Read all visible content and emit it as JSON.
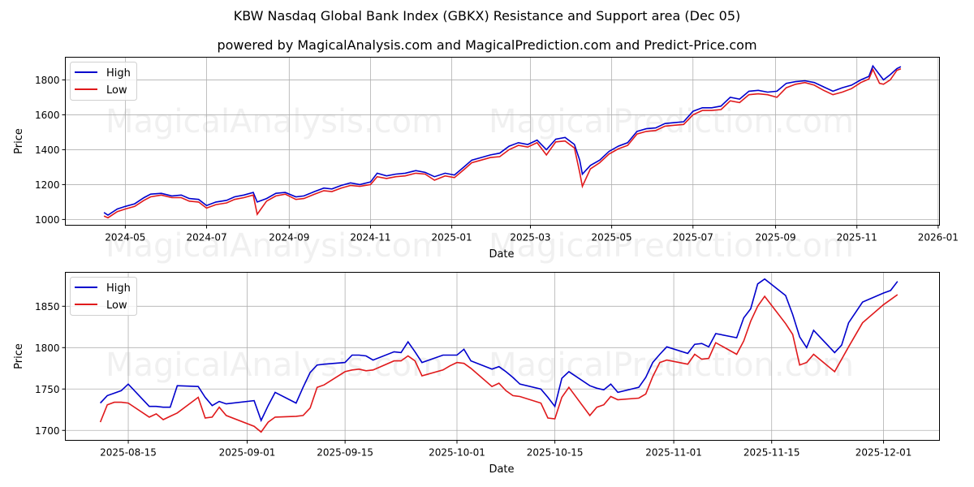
{
  "header": {
    "title": "KBW Nasdaq Global Bank Index (GBKX) Resistance and Support area (Dec 05)",
    "subtitle": "powered by MagicalAnalysis.com and MagicalPrediction.com and Predict-Price.com"
  },
  "watermarks": [
    "MagicalAnalysis.com",
    "MagicalPrediction.com"
  ],
  "colors": {
    "high": "#0000cc",
    "low": "#e0191b",
    "grid": "#b0b0b0"
  },
  "chart_data": [
    {
      "type": "line",
      "title": "",
      "xlabel": "Date",
      "ylabel": "Price",
      "ylim": [
        967,
        1930
      ],
      "xlim": [
        "2024-03-17",
        "2026-01-02"
      ],
      "yticks": [
        1000,
        1200,
        1400,
        1600,
        1800
      ],
      "xticks": [
        "2024-05",
        "2024-07",
        "2024-09",
        "2024-11",
        "2025-01",
        "2025-03",
        "2025-05",
        "2025-07",
        "2025-09",
        "2025-11",
        "2026-01"
      ],
      "grid": true,
      "legend": {
        "position": "upper left",
        "entries": [
          "High",
          "Low"
        ]
      },
      "x": [
        "2024-04-15",
        "2024-04-18",
        "2024-04-25",
        "2024-05-01",
        "2024-05-08",
        "2024-05-15",
        "2024-05-20",
        "2024-05-28",
        "2024-06-05",
        "2024-06-12",
        "2024-06-18",
        "2024-06-25",
        "2024-07-01",
        "2024-07-08",
        "2024-07-16",
        "2024-07-22",
        "2024-07-29",
        "2024-08-05",
        "2024-08-08",
        "2024-08-15",
        "2024-08-22",
        "2024-08-29",
        "2024-09-06",
        "2024-09-12",
        "2024-09-20",
        "2024-09-27",
        "2024-10-03",
        "2024-10-10",
        "2024-10-17",
        "2024-10-24",
        "2024-11-01",
        "2024-11-06",
        "2024-11-13",
        "2024-11-20",
        "2024-11-27",
        "2024-12-05",
        "2024-12-12",
        "2024-12-19",
        "2024-12-27",
        "2025-01-03",
        "2025-01-10",
        "2025-01-16",
        "2025-01-23",
        "2025-01-30",
        "2025-02-06",
        "2025-02-13",
        "2025-02-20",
        "2025-02-27",
        "2025-03-06",
        "2025-03-13",
        "2025-03-20",
        "2025-03-27",
        "2025-04-03",
        "2025-04-07",
        "2025-04-09",
        "2025-04-15",
        "2025-04-22",
        "2025-04-29",
        "2025-05-06",
        "2025-05-13",
        "2025-05-20",
        "2025-05-27",
        "2025-06-03",
        "2025-06-10",
        "2025-06-17",
        "2025-06-24",
        "2025-07-01",
        "2025-07-08",
        "2025-07-15",
        "2025-07-22",
        "2025-07-29",
        "2025-08-05",
        "2025-08-12",
        "2025-08-19",
        "2025-08-26",
        "2025-09-02",
        "2025-09-09",
        "2025-09-16",
        "2025-09-23",
        "2025-09-30",
        "2025-10-07",
        "2025-10-14",
        "2025-10-21",
        "2025-10-28",
        "2025-11-04",
        "2025-11-10",
        "2025-11-13",
        "2025-11-18",
        "2025-11-21",
        "2025-11-26",
        "2025-12-01",
        "2025-12-04"
      ],
      "series": [
        {
          "name": "High",
          "values": [
            1040,
            1025,
            1060,
            1075,
            1090,
            1125,
            1145,
            1150,
            1135,
            1140,
            1120,
            1115,
            1080,
            1100,
            1110,
            1130,
            1140,
            1155,
            1100,
            1120,
            1150,
            1155,
            1130,
            1135,
            1160,
            1180,
            1175,
            1195,
            1210,
            1200,
            1215,
            1265,
            1250,
            1260,
            1265,
            1280,
            1270,
            1245,
            1265,
            1255,
            1300,
            1340,
            1355,
            1370,
            1380,
            1420,
            1440,
            1430,
            1455,
            1400,
            1460,
            1470,
            1430,
            1340,
            1260,
            1310,
            1340,
            1390,
            1420,
            1440,
            1505,
            1520,
            1525,
            1550,
            1555,
            1560,
            1620,
            1640,
            1640,
            1650,
            1700,
            1690,
            1735,
            1740,
            1730,
            1735,
            1780,
            1790,
            1795,
            1785,
            1760,
            1735,
            1755,
            1770,
            1800,
            1820,
            1880,
            1830,
            1800,
            1830,
            1865,
            1876
          ]
        },
        {
          "name": "Low",
          "values": [
            1020,
            1010,
            1045,
            1060,
            1075,
            1110,
            1130,
            1140,
            1125,
            1125,
            1105,
            1100,
            1065,
            1085,
            1095,
            1115,
            1125,
            1140,
            1030,
            1105,
            1135,
            1145,
            1115,
            1120,
            1145,
            1165,
            1160,
            1180,
            1195,
            1190,
            1200,
            1245,
            1235,
            1245,
            1250,
            1265,
            1260,
            1225,
            1250,
            1240,
            1285,
            1325,
            1340,
            1355,
            1360,
            1400,
            1425,
            1415,
            1440,
            1370,
            1445,
            1450,
            1410,
            1270,
            1190,
            1290,
            1325,
            1375,
            1405,
            1425,
            1490,
            1505,
            1510,
            1535,
            1540,
            1545,
            1600,
            1625,
            1625,
            1630,
            1680,
            1670,
            1715,
            1720,
            1715,
            1700,
            1755,
            1775,
            1785,
            1770,
            1740,
            1715,
            1730,
            1750,
            1785,
            1805,
            1860,
            1780,
            1775,
            1800,
            1855,
            1864
          ]
        }
      ]
    },
    {
      "type": "line",
      "title": "",
      "xlabel": "Date",
      "ylabel": "Price",
      "ylim": [
        1688,
        1891
      ],
      "xlim": [
        "2025-08-06",
        "2025-12-09"
      ],
      "yticks": [
        1700,
        1750,
        1800,
        1850
      ],
      "xticks": [
        "2025-08-15",
        "2025-09-01",
        "2025-09-15",
        "2025-10-01",
        "2025-10-15",
        "2025-11-01",
        "2025-11-15",
        "2025-12-01"
      ],
      "grid": true,
      "legend": {
        "position": "upper left",
        "entries": [
          "High",
          "Low"
        ]
      },
      "x": [
        "2025-08-11",
        "2025-08-12",
        "2025-08-13",
        "2025-08-14",
        "2025-08-15",
        "2025-08-18",
        "2025-08-19",
        "2025-08-20",
        "2025-08-21",
        "2025-08-22",
        "2025-08-25",
        "2025-08-26",
        "2025-08-27",
        "2025-08-28",
        "2025-08-29",
        "2025-09-02",
        "2025-09-03",
        "2025-09-04",
        "2025-09-05",
        "2025-09-08",
        "2025-09-09",
        "2025-09-10",
        "2025-09-11",
        "2025-09-12",
        "2025-09-15",
        "2025-09-16",
        "2025-09-17",
        "2025-09-18",
        "2025-09-19",
        "2025-09-22",
        "2025-09-23",
        "2025-09-24",
        "2025-09-25",
        "2025-09-26",
        "2025-09-29",
        "2025-09-30",
        "2025-10-01",
        "2025-10-02",
        "2025-10-03",
        "2025-10-06",
        "2025-10-07",
        "2025-10-08",
        "2025-10-09",
        "2025-10-10",
        "2025-10-13",
        "2025-10-14",
        "2025-10-15",
        "2025-10-16",
        "2025-10-17",
        "2025-10-20",
        "2025-10-21",
        "2025-10-22",
        "2025-10-23",
        "2025-10-24",
        "2025-10-27",
        "2025-10-28",
        "2025-10-29",
        "2025-10-30",
        "2025-10-31",
        "2025-11-03",
        "2025-11-04",
        "2025-11-05",
        "2025-11-06",
        "2025-11-07",
        "2025-11-10",
        "2025-11-11",
        "2025-11-12",
        "2025-11-13",
        "2025-11-14",
        "2025-11-17",
        "2025-11-18",
        "2025-11-19",
        "2025-11-20",
        "2025-11-21",
        "2025-11-24",
        "2025-11-25",
        "2025-11-26",
        "2025-11-28",
        "2025-12-01",
        "2025-12-02",
        "2025-12-03"
      ],
      "series": [
        {
          "name": "High",
          "values": [
            1733,
            1742,
            1745,
            1748,
            1756,
            1729,
            1729,
            1728,
            1728,
            1754,
            1753,
            1740,
            1730,
            1735,
            1732,
            1736,
            1712,
            1730,
            1746,
            1733,
            1752,
            1770,
            1779,
            1780,
            1782,
            1791,
            1791,
            1790,
            1785,
            1795,
            1794,
            1807,
            1795,
            1782,
            1791,
            1791,
            1791,
            1798,
            1784,
            1774,
            1777,
            1771,
            1764,
            1756,
            1750,
            1740,
            1729,
            1763,
            1771,
            1754,
            1751,
            1749,
            1756,
            1746,
            1752,
            1764,
            1782,
            1792,
            1801,
            1793,
            1804,
            1805,
            1801,
            1817,
            1812,
            1836,
            1847,
            1877,
            1883,
            1863,
            1840,
            1813,
            1800,
            1821,
            1794,
            1803,
            1830,
            1855,
            1866,
            1869,
            1880
          ]
        },
        {
          "name": "Low",
          "values": [
            1710,
            1731,
            1734,
            1734,
            1733,
            1716,
            1720,
            1713,
            1717,
            1721,
            1740,
            1715,
            1716,
            1728,
            1718,
            1705,
            1698,
            1710,
            1716,
            1717,
            1718,
            1727,
            1752,
            1755,
            1771,
            1773,
            1774,
            1772,
            1773,
            1784,
            1784,
            1790,
            1784,
            1766,
            1773,
            1778,
            1782,
            1781,
            1775,
            1753,
            1757,
            1748,
            1742,
            1741,
            1733,
            1715,
            1714,
            1740,
            1752,
            1718,
            1728,
            1731,
            1741,
            1737,
            1739,
            1744,
            1765,
            1782,
            1785,
            1780,
            1792,
            1786,
            1787,
            1806,
            1792,
            1808,
            1832,
            1850,
            1862,
            1829,
            1816,
            1779,
            1782,
            1792,
            1771,
            1786,
            1801,
            1830,
            1852,
            1858,
            1864
          ]
        }
      ]
    }
  ]
}
